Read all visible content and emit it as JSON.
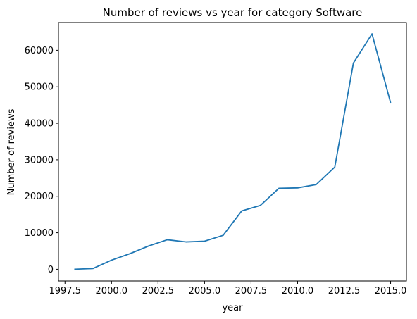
{
  "chart_data": {
    "type": "line",
    "title": "Number of reviews vs year for category Software",
    "xlabel": "year",
    "ylabel": "Number of reviews",
    "xlim": [
      1997.15,
      2015.85
    ],
    "ylim": [
      -3200,
      67600
    ],
    "xticks": [
      1997.5,
      2000.0,
      2002.5,
      2005.0,
      2007.5,
      2010.0,
      2012.5,
      2015.0
    ],
    "xtick_labels": [
      "1997.5",
      "2000.0",
      "2002.5",
      "2005.0",
      "2007.5",
      "2010.0",
      "2012.5",
      "2015.0"
    ],
    "yticks": [
      0,
      10000,
      20000,
      30000,
      40000,
      50000,
      60000
    ],
    "ytick_labels": [
      "0",
      "10000",
      "20000",
      "30000",
      "40000",
      "50000",
      "60000"
    ],
    "grid": false,
    "series": [
      {
        "color": "#1f77b4",
        "x": [
          1998,
          1999,
          2000,
          2001,
          2002,
          2003,
          2004,
          2005,
          2006,
          2007,
          2008,
          2009,
          2010,
          2011,
          2012,
          2013,
          2014,
          2015
        ],
        "y": [
          0,
          200,
          2500,
          4300,
          6400,
          8100,
          7500,
          7700,
          9300,
          16000,
          17500,
          22200,
          22300,
          23200,
          28000,
          56500,
          64500,
          45600
        ]
      }
    ]
  }
}
